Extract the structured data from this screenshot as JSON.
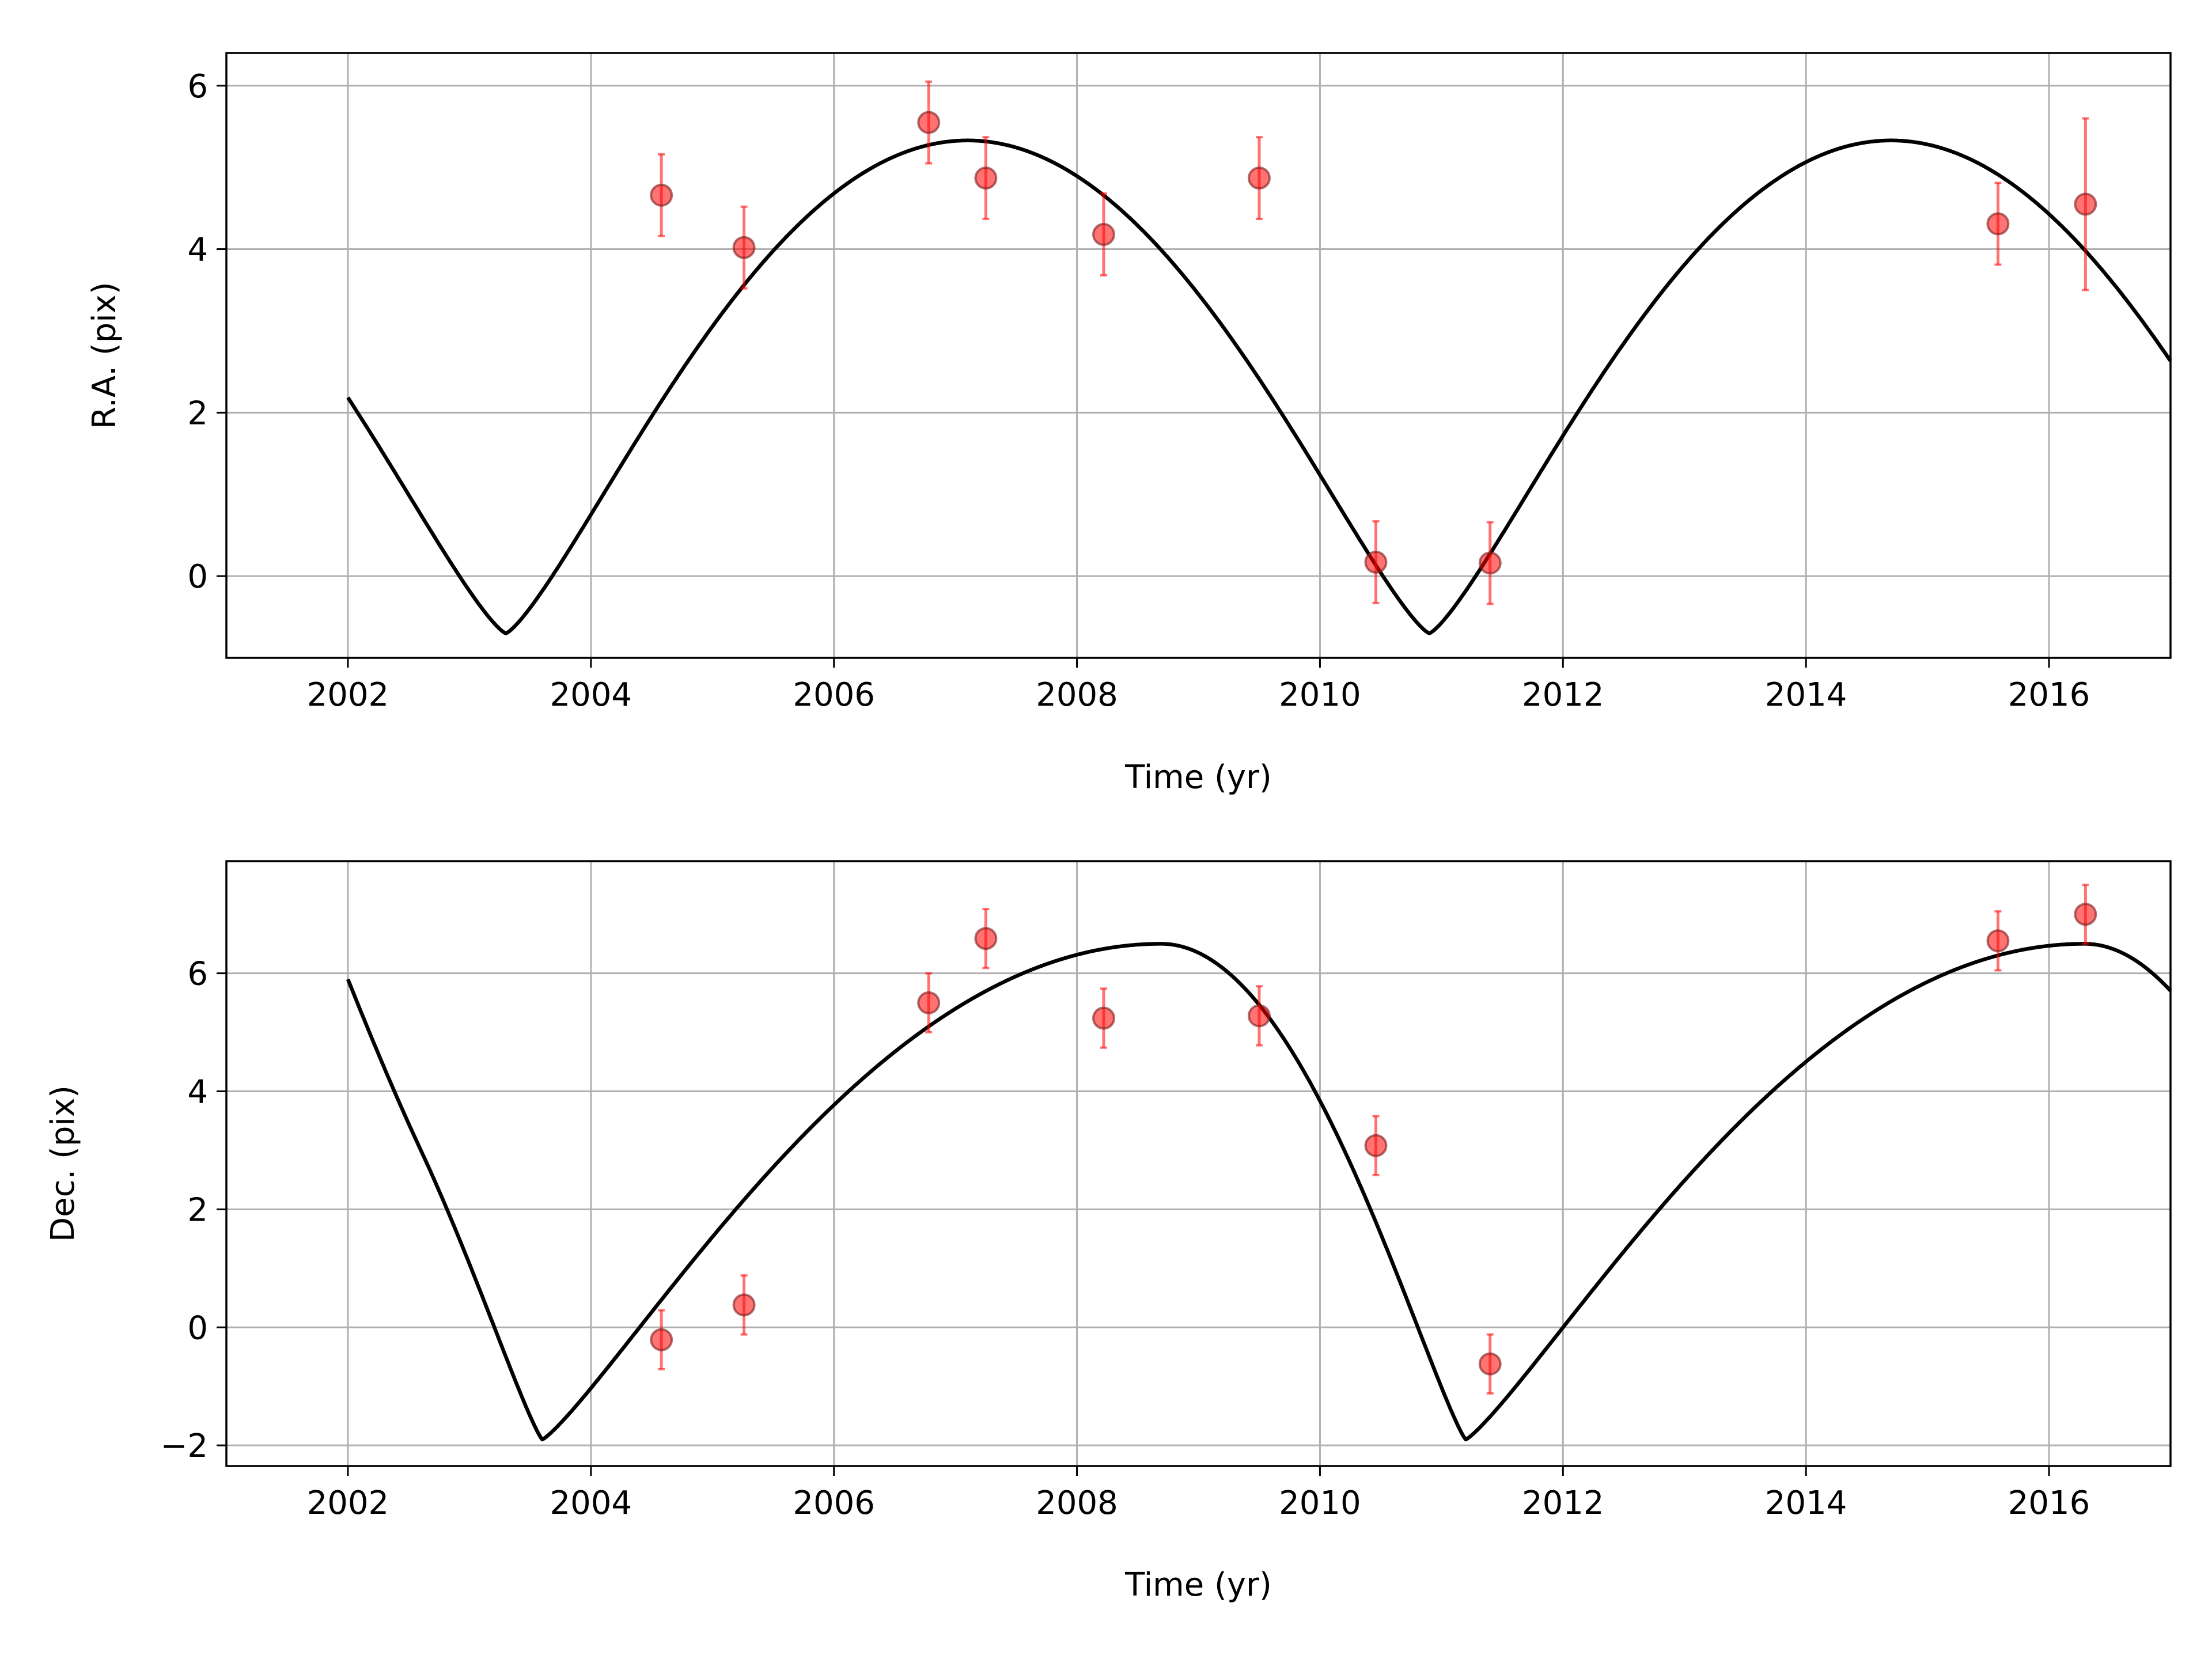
{
  "colors": {
    "model_line": "#000000",
    "point_fill": "#ff0000",
    "grid": "#b0b0b0",
    "axes": "#000000"
  },
  "chart_data": [
    {
      "type": "scatter",
      "xlabel": "Time (yr)",
      "ylabel": "R.A. (pix)",
      "xlim": [
        2001,
        2017
      ],
      "ylim": [
        -1.0,
        6.4
      ],
      "xticks": [
        2002,
        2004,
        2006,
        2008,
        2010,
        2012,
        2014,
        2016
      ],
      "yticks": [
        0,
        2,
        4,
        6
      ],
      "ytick_labels": [
        "0",
        "2",
        "4",
        "6"
      ],
      "grid": true,
      "model_curve": {
        "t_start": 2002.0,
        "t_end": 2017.0,
        "period": 7.6,
        "cusp_epoch": 2003.3,
        "cusp_value": -0.7,
        "peak_value": 5.33,
        "peak_phase": 0.5,
        "shape_power": 1.3
      },
      "points": [
        {
          "x": 2004.58,
          "y": 4.66,
          "err": 0.5
        },
        {
          "x": 2005.26,
          "y": 4.02,
          "err": 0.5
        },
        {
          "x": 2006.78,
          "y": 5.55,
          "err": 0.5
        },
        {
          "x": 2007.25,
          "y": 4.87,
          "err": 0.5
        },
        {
          "x": 2008.22,
          "y": 4.18,
          "err": 0.5
        },
        {
          "x": 2009.5,
          "y": 4.87,
          "err": 0.5
        },
        {
          "x": 2010.46,
          "y": 0.17,
          "err": 0.5
        },
        {
          "x": 2011.4,
          "y": 0.16,
          "err": 0.5
        },
        {
          "x": 2015.58,
          "y": 4.31,
          "err": 0.5
        },
        {
          "x": 2016.3,
          "y": 4.55,
          "err": 1.05
        }
      ]
    },
    {
      "type": "scatter",
      "xlabel": "Time (yr)",
      "ylabel": "Dec. (pix)",
      "xlim": [
        2001,
        2017
      ],
      "ylim": [
        -2.35,
        7.9
      ],
      "xticks": [
        2002,
        2004,
        2006,
        2008,
        2010,
        2012,
        2014,
        2016
      ],
      "yticks": [
        -2,
        0,
        2,
        4,
        6
      ],
      "ytick_labels": [
        "−2",
        "0",
        "2",
        "4",
        "6"
      ],
      "grid": true,
      "model_curve": {
        "t_start": 2002.0,
        "t_end": 2017.0,
        "period": 7.6,
        "cusp_epoch": 2003.6,
        "cusp_value": -1.9,
        "peak_value": 6.5,
        "peak_phase": 0.67,
        "shape_power": 1.2,
        "start_value": 5.9
      },
      "points": [
        {
          "x": 2004.58,
          "y": -0.21,
          "err": 0.5
        },
        {
          "x": 2005.26,
          "y": 0.38,
          "err": 0.5
        },
        {
          "x": 2006.78,
          "y": 5.5,
          "err": 0.5
        },
        {
          "x": 2007.25,
          "y": 6.59,
          "err": 0.5
        },
        {
          "x": 2008.22,
          "y": 5.24,
          "err": 0.5
        },
        {
          "x": 2009.5,
          "y": 5.28,
          "err": 0.5
        },
        {
          "x": 2010.46,
          "y": 3.08,
          "err": 0.5
        },
        {
          "x": 2011.4,
          "y": -0.62,
          "err": 0.5
        },
        {
          "x": 2015.58,
          "y": 6.55,
          "err": 0.5
        },
        {
          "x": 2016.3,
          "y": 7.0,
          "err": 0.5
        }
      ]
    }
  ]
}
